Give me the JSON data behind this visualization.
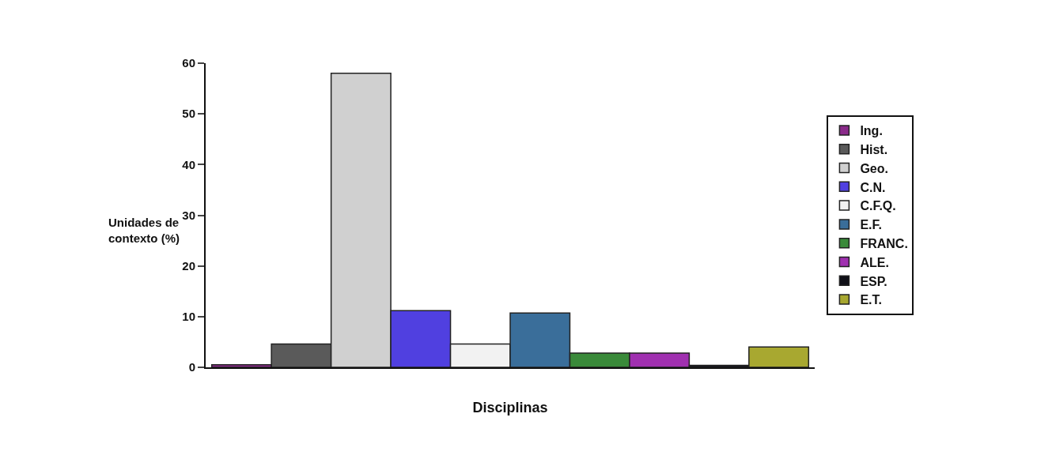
{
  "chart_data": {
    "type": "bar",
    "xlabel": "Disciplinas",
    "ylabel": "Unidades de\ncontexto (%)",
    "categories": [
      null
    ],
    "ylim": [
      0,
      60
    ],
    "yticks": [
      0,
      10,
      20,
      30,
      40,
      50,
      60
    ],
    "legend": "right",
    "series": [
      {
        "name": "Ing.",
        "color": "#8a2a8a",
        "values": [
          0.5
        ]
      },
      {
        "name": "Hist.",
        "color": "#5a5a5a",
        "values": [
          4.6
        ]
      },
      {
        "name": "Geo.",
        "color": "#d0d0d0",
        "values": [
          58
        ]
      },
      {
        "name": "C.N.",
        "color": "#5040e0",
        "values": [
          11.2
        ]
      },
      {
        "name": "C.F.Q.",
        "color": "#f2f2f2",
        "values": [
          4.6
        ]
      },
      {
        "name": "E.F.",
        "color": "#3a6e9a",
        "values": [
          10.7
        ]
      },
      {
        "name": "FRANC.",
        "color": "#3a8a3a",
        "values": [
          2.8
        ]
      },
      {
        "name": "ALE.",
        "color": "#a030b0",
        "values": [
          2.8
        ]
      },
      {
        "name": "ESP.",
        "color": "#101018",
        "values": [
          0.4
        ]
      },
      {
        "name": "E.T.",
        "color": "#a8a830",
        "values": [
          4.0
        ]
      }
    ]
  }
}
